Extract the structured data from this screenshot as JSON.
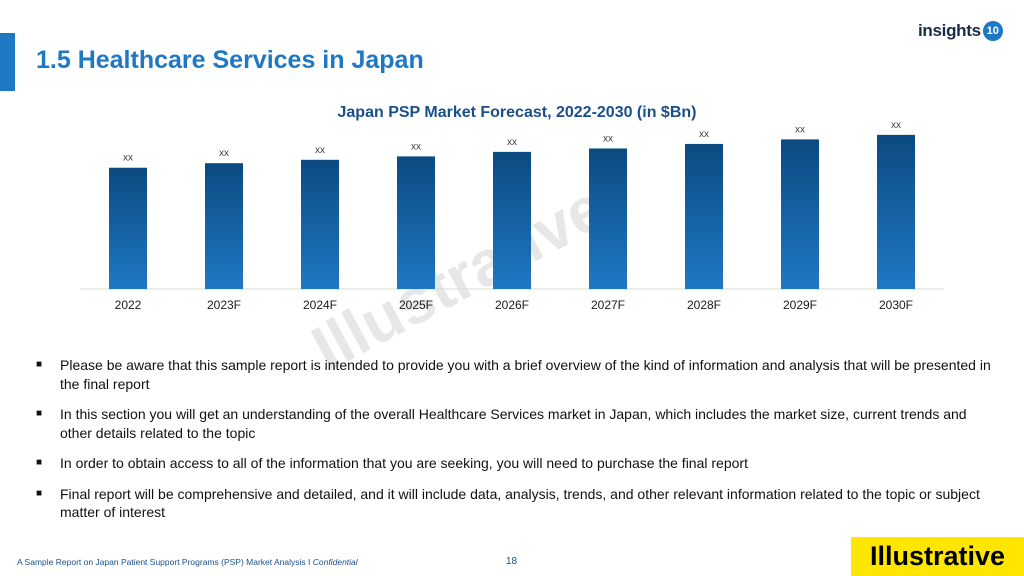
{
  "header": {
    "title": "1.5 Healthcare Services in Japan",
    "logo_text": "insights",
    "logo_badge": "10"
  },
  "colors": {
    "accent": "#1f78c4",
    "bar_top": "#0b4a80",
    "bar_bottom": "#1f78c4"
  },
  "chart_data": {
    "type": "bar",
    "title": "Japan PSP Market Forecast, 2022-2030 (in $Bn)",
    "categories": [
      "2022",
      "2023F",
      "2024F",
      "2025F",
      "2026F",
      "2027F",
      "2028F",
      "2029F",
      "2030F"
    ],
    "values": [
      107,
      111,
      114,
      117,
      121,
      124,
      128,
      132,
      136
    ],
    "data_labels": [
      "xx",
      "xx",
      "xx",
      "xx",
      "xx",
      "xx",
      "xx",
      "xx",
      "xx"
    ],
    "ylim": [
      0,
      150
    ],
    "xlabel": "",
    "ylabel": "",
    "grid": false,
    "legend": false
  },
  "bullets": [
    "Please be aware that this sample report is intended to provide you with a brief overview of the kind of information and analysis that will be presented in the final report",
    "In this section you will get an understanding of the overall Healthcare Services market in Japan, which includes the market size, current trends and other details related to the topic",
    "In order to obtain access to all of the information that you are seeking, you will need to purchase the final report",
    "Final report will be comprehensive and detailed, and it will include data, analysis, trends, and other relevant information related to the topic or subject matter of interest"
  ],
  "bullet_symbol": "■",
  "footer": {
    "text": "A Sample Report on Japan Patient Support Programs (PSP) Market Analysis I",
    "confidential": "Confidential",
    "page_number": "18"
  },
  "stamp": "Illustrative",
  "watermark": "Illustrative"
}
